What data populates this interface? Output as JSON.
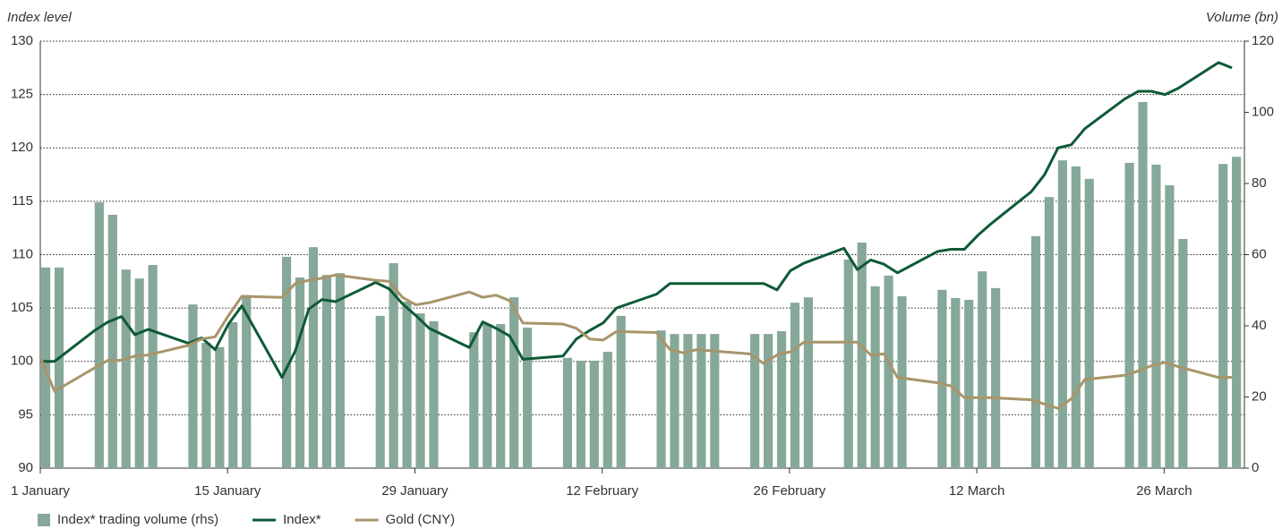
{
  "chart_data": {
    "type": "bar",
    "y_label": "Index level",
    "y2_label": "Volume (bn)",
    "x": [
      0,
      1,
      4,
      5,
      6,
      7,
      8,
      11,
      12,
      13,
      14,
      15,
      18,
      19,
      20,
      21,
      22,
      25,
      26,
      27,
      28,
      29,
      32,
      33,
      34,
      35,
      36,
      39,
      40,
      41,
      42,
      43,
      46,
      47,
      48,
      49,
      50,
      53,
      54,
      55,
      56,
      57,
      60,
      61,
      62,
      63,
      64,
      67,
      68,
      69,
      70,
      71,
      74,
      75,
      76,
      77,
      78,
      81,
      82,
      83,
      84,
      85,
      88,
      89
    ],
    "xlim": [
      0,
      90
    ],
    "xticks": [
      {
        "value": 0,
        "label": "1 January"
      },
      {
        "value": 14,
        "label": "15 January"
      },
      {
        "value": 28,
        "label": "29 January"
      },
      {
        "value": 42,
        "label": "12 February"
      },
      {
        "value": 56,
        "label": "26 February"
      },
      {
        "value": 70,
        "label": "12 March"
      },
      {
        "value": 84,
        "label": "26 March"
      }
    ],
    "ylim": [
      90,
      130
    ],
    "yticks": [
      90,
      95,
      100,
      105,
      110,
      115,
      120,
      125,
      130
    ],
    "y2lim": [
      0,
      120
    ],
    "y2ticks": [
      0,
      20,
      40,
      60,
      80,
      100,
      120
    ],
    "grid": true,
    "legend": "bottom",
    "series": [
      {
        "name": "Index* trading volume (rhs)",
        "type": "bar",
        "axis": "y2",
        "color": "#86a899",
        "values": [
          56.4,
          56.4,
          74.7,
          71.2,
          55.8,
          53.3,
          57.1,
          46.0,
          35.2,
          34.0,
          41.0,
          48.6,
          59.4,
          53.6,
          62.1,
          54.3,
          54.8,
          42.8,
          57.6,
          46.8,
          43.5,
          41.3,
          38.2,
          40.5,
          40.5,
          48.0,
          39.5,
          31.0,
          30.2,
          30.2,
          32.7,
          42.8,
          38.7,
          37.7,
          37.7,
          37.7,
          37.7,
          37.7,
          37.7,
          38.5,
          46.5,
          48.0,
          58.6,
          63.4,
          51.1,
          54.1,
          48.3,
          50.1,
          47.8,
          47.3,
          55.3,
          50.6,
          65.2,
          76.2,
          86.5,
          84.8,
          81.3,
          85.8,
          102.9,
          85.3,
          79.5,
          64.4,
          85.5,
          87.5
        ]
      },
      {
        "name": "Index*",
        "type": "line",
        "color": "#0e5a36",
        "values": [
          100,
          100,
          102.9,
          103.7,
          104.2,
          102.5,
          103,
          101.7,
          102.2,
          101.1,
          103.5,
          105.2,
          98.5,
          101,
          104.9,
          105.8,
          105.6,
          107.4,
          106.8,
          105.4,
          104.3,
          103.1,
          101.3,
          103.7,
          103.1,
          102.4,
          100.2,
          100.5,
          102.1,
          102.9,
          103.6,
          105,
          106.3,
          107.3,
          107.3,
          107.3,
          107.3,
          107.3,
          107.3,
          106.7,
          108.5,
          109.2,
          110.6,
          108.6,
          109.5,
          109.1,
          108.3,
          110.3,
          110.5,
          110.5,
          111.8,
          112.9,
          115.9,
          117.5,
          120,
          120.3,
          121.8,
          124.6,
          125.3,
          125.3,
          125,
          125.6,
          128,
          127.5
        ]
      },
      {
        "name": "Gold (CNY)",
        "type": "line",
        "color": "#a8956a",
        "values": [
          100.2,
          97.2,
          99.4,
          100.1,
          100.1,
          100.5,
          100.6,
          101.5,
          102.1,
          102.3,
          104.3,
          106.1,
          106,
          107.3,
          107.6,
          107.8,
          108.1,
          107.6,
          107.5,
          106,
          105.3,
          105.5,
          106.5,
          106,
          106.2,
          105.7,
          103.6,
          103.5,
          103.1,
          102.1,
          102,
          102.8,
          102.7,
          101.1,
          100.8,
          101.1,
          101,
          100.7,
          99.8,
          100.6,
          100.9,
          101.8,
          101.8,
          101.8,
          100.6,
          100.7,
          98.5,
          98,
          97.7,
          96.6,
          96.6,
          96.6,
          96.4,
          96,
          95.6,
          96.5,
          98.3,
          98.7,
          99.1,
          99.6,
          99.9,
          99.5,
          98.5,
          98.5
        ]
      }
    ]
  }
}
